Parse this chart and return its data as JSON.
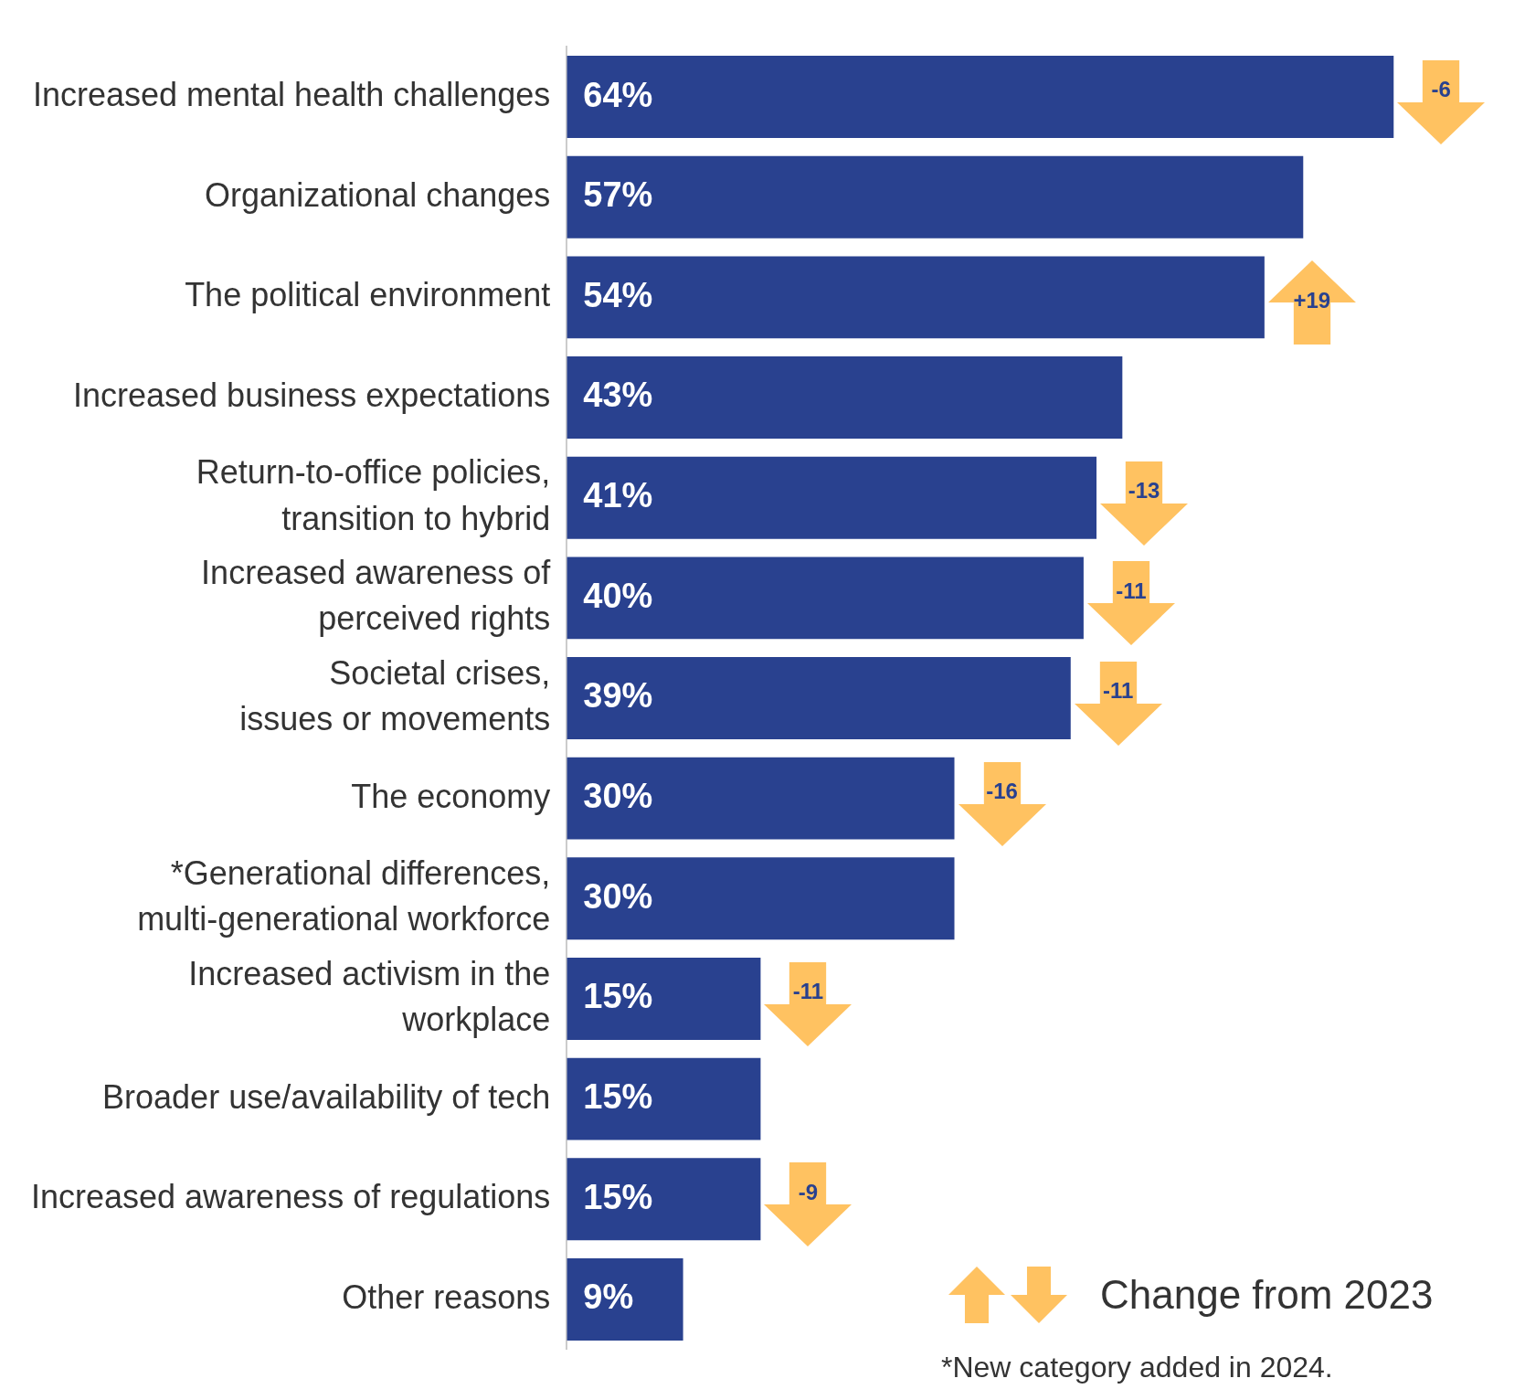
{
  "chart_data": {
    "type": "bar",
    "orientation": "horizontal",
    "color": "#29418f",
    "grid": false,
    "legend": false,
    "categories": [
      "Increased mental health challenges",
      "Organizational changes",
      "The political environment",
      "Increased business expectations",
      "Return-to-office policies,\ntransition to hybrid",
      "Increased awareness of\nperceived rights",
      "Societal crises,\nissues or movements",
      "The economy",
      "*Generational differences,\nmulti-generational workforce",
      "Increased activism in the\nworkplace",
      "Broader use/availability of tech",
      "Increased awareness of regulations",
      "Other reasons"
    ],
    "values": [
      64,
      57,
      54,
      43,
      41,
      40,
      39,
      30,
      30,
      15,
      15,
      15,
      9
    ],
    "value_labels": [
      "64%",
      "57%",
      "54%",
      "43%",
      "41%",
      "40%",
      "39%",
      "30%",
      "30%",
      "15%",
      "15%",
      "15%",
      "9%"
    ],
    "annotations": [
      {
        "text": "-6",
        "x": 64,
        "y": "Increased mental health challenges"
      },
      {
        "text": "+19",
        "x": 54,
        "y": "The political environment"
      },
      {
        "text": "-13",
        "x": 41,
        "y": "Return-to-office policies,\ntransition to hybrid"
      },
      {
        "text": "-11",
        "x": 40,
        "y": "Increased awareness of\nperceived rights"
      },
      {
        "text": "-11",
        "x": 39,
        "y": "Societal crises,\nissues or movements"
      },
      {
        "text": "-16",
        "x": 30,
        "y": "The economy"
      },
      {
        "text": "-11",
        "x": 15,
        "y": "Increased activism in the\nworkplace"
      },
      {
        "text": "-9",
        "x": 15,
        "y": "Increased awareness of regulations"
      },
      "Change from 2023",
      "*New category added in 2024."
    ]
  }
}
